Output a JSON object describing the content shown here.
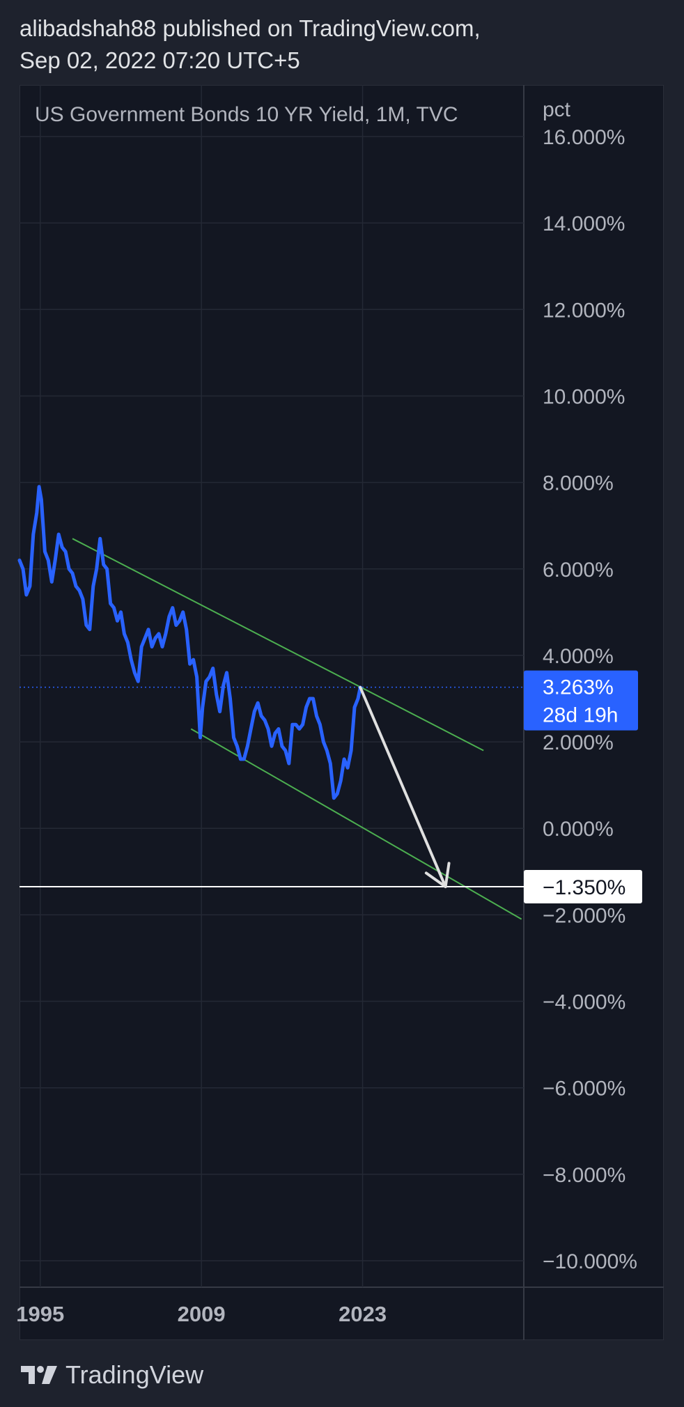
{
  "header": {
    "line1": "alibadshah88 published on TradingView.com,",
    "line2": "Sep 02, 2022 07:20 UTC+5"
  },
  "footer": {
    "brand": "TradingView",
    "logo_icon": "tradingview-logo-icon"
  },
  "colors": {
    "background": "#1e222d",
    "pane": "#131722",
    "grid": "#242935",
    "text": "#b2b5be",
    "series": "#2962ff",
    "channel": "#4caf50",
    "arrow": "#e0e0e0",
    "hline": "#ffffff",
    "last_price_bg": "#2962ff"
  },
  "chart_data": {
    "type": "line",
    "title": "US Government Bonds 10 YR Yield, 1M, TVC",
    "ylabel": "pct",
    "ylim": [
      -10.9,
      16.0
    ],
    "xlim": [
      1993.2,
      2037.0
    ],
    "x_ticks": [
      1995,
      2009,
      2023
    ],
    "x_tick_labels": [
      "1995",
      "2009",
      "2023"
    ],
    "y_ticks": [
      16,
      14,
      12,
      10,
      8,
      6,
      4,
      2,
      0,
      -2,
      -4,
      -6,
      -8,
      -10
    ],
    "y_tick_labels": [
      "16.000%",
      "14.000%",
      "12.000%",
      "10.000%",
      "8.000%",
      "6.000%",
      "4.000%",
      "2.000%",
      "0.000%",
      "−2.000%",
      "−4.000%",
      "−6.000%",
      "−8.000%",
      "−10.000%"
    ],
    "grid": true,
    "series": [
      {
        "x": [
          1993.2,
          1993.5,
          1993.8,
          1994.1,
          1994.4,
          1994.7,
          1994.9,
          1995.1,
          1995.4,
          1995.7,
          1996.0,
          1996.3,
          1996.6,
          1996.9,
          1997.2,
          1997.5,
          1997.8,
          1998.1,
          1998.4,
          1998.7,
          1999.0,
          1999.3,
          1999.6,
          1999.9,
          2000.2,
          2000.5,
          2000.8,
          2001.1,
          2001.4,
          2001.7,
          2002.0,
          2002.3,
          2002.6,
          2002.9,
          2003.2,
          2003.5,
          2003.8,
          2004.1,
          2004.4,
          2004.7,
          2005.0,
          2005.3,
          2005.6,
          2005.9,
          2006.2,
          2006.5,
          2006.8,
          2007.1,
          2007.4,
          2007.7,
          2008.0,
          2008.3,
          2008.6,
          2008.9,
          2009.1,
          2009.4,
          2009.7,
          2010.0,
          2010.3,
          2010.6,
          2010.9,
          2011.2,
          2011.5,
          2011.8,
          2012.1,
          2012.4,
          2012.7,
          2013.0,
          2013.3,
          2013.6,
          2013.9,
          2014.2,
          2014.5,
          2014.8,
          2015.1,
          2015.4,
          2015.7,
          2016.0,
          2016.3,
          2016.6,
          2016.9,
          2017.2,
          2017.5,
          2017.8,
          2018.1,
          2018.4,
          2018.7,
          2019.0,
          2019.3,
          2019.6,
          2019.9,
          2020.2,
          2020.5,
          2020.8,
          2021.1,
          2021.4,
          2021.7,
          2022.0,
          2022.3,
          2022.6,
          2022.8
        ],
        "y": [
          6.2,
          6.0,
          5.4,
          5.6,
          6.8,
          7.3,
          7.9,
          7.6,
          6.4,
          6.2,
          5.7,
          6.2,
          6.8,
          6.5,
          6.4,
          6.0,
          5.9,
          5.6,
          5.5,
          5.3,
          4.7,
          4.6,
          5.6,
          6.0,
          6.7,
          6.1,
          6.0,
          5.2,
          5.1,
          4.8,
          5.0,
          4.5,
          4.3,
          3.9,
          3.6,
          3.4,
          4.2,
          4.4,
          4.6,
          4.2,
          4.4,
          4.5,
          4.2,
          4.5,
          4.9,
          5.1,
          4.7,
          4.8,
          5.0,
          4.6,
          3.8,
          3.9,
          3.5,
          2.1,
          2.8,
          3.4,
          3.5,
          3.7,
          3.1,
          2.7,
          3.3,
          3.6,
          3.0,
          2.1,
          1.9,
          1.6,
          1.6,
          1.9,
          2.3,
          2.7,
          2.9,
          2.6,
          2.5,
          2.3,
          1.9,
          2.2,
          2.3,
          1.9,
          1.8,
          1.5,
          2.4,
          2.4,
          2.3,
          2.4,
          2.8,
          3.0,
          3.0,
          2.6,
          2.4,
          2.0,
          1.8,
          1.5,
          0.7,
          0.8,
          1.1,
          1.6,
          1.4,
          1.8,
          2.8,
          3.0,
          3.26
        ]
      }
    ],
    "current_value": {
      "label": "3.263%",
      "countdown": "28d 19h",
      "y": 3.263
    },
    "horizontal_line": {
      "y": -1.35,
      "label": "−1.350%"
    },
    "channel_lines": [
      {
        "x1": 1997.8,
        "y1": 6.7,
        "x2": 2033.5,
        "y2": 1.8
      },
      {
        "x1": 2008.1,
        "y1": 2.3,
        "x2": 2036.8,
        "y2": -2.1
      }
    ],
    "projection_arrow": {
      "x1": 2022.8,
      "y1": 3.26,
      "x2": 2030.2,
      "y2": -1.35
    }
  }
}
